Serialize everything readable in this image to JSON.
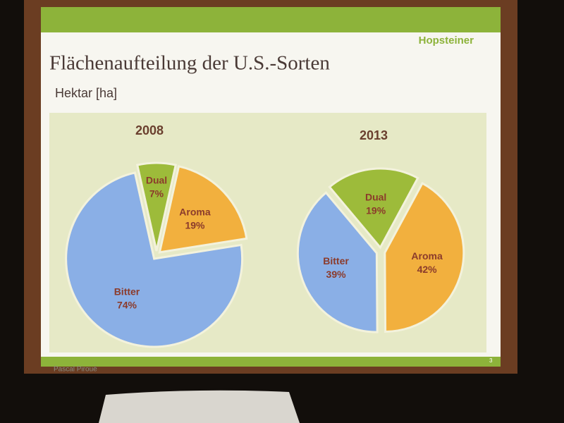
{
  "slide": {
    "logo": "Hopsteiner",
    "title": "Flächenaufteilung der U.S.-Sorten",
    "subtitle": "Hektar [ha]",
    "presenter": "Pascal Piroué",
    "page": "3"
  },
  "chart_data": [
    {
      "type": "pie",
      "title": "2008",
      "categories": [
        "Dual",
        "Aroma",
        "Bitter"
      ],
      "values": [
        7,
        19,
        74
      ],
      "value_labels": [
        "7%",
        "19%",
        "74%"
      ],
      "colors": [
        "#9dbb3a",
        "#f2b03e",
        "#8aafe6"
      ]
    },
    {
      "type": "pie",
      "title": "2013",
      "categories": [
        "Dual",
        "Aroma",
        "Bitter"
      ],
      "values": [
        19,
        42,
        39
      ],
      "value_labels": [
        "19%",
        "42%",
        "39%"
      ],
      "colors": [
        "#9dbb3a",
        "#f2b03e",
        "#8aafe6"
      ]
    }
  ]
}
